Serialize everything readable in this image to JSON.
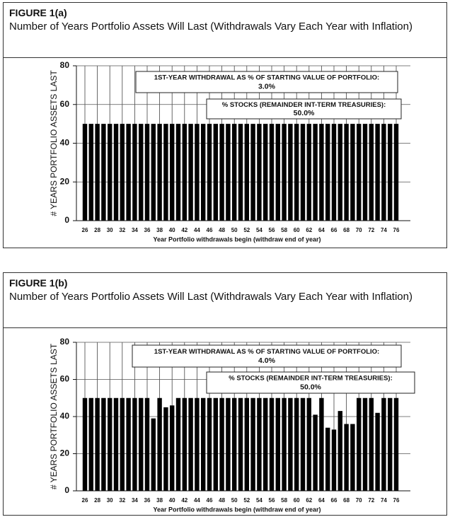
{
  "chart_data": [
    {
      "type": "bar",
      "title": "FIGURE 1(a)",
      "subtitle": "Number of Years Portfolio Assets Will Last (Withdrawals Vary Each Year with Inflation)",
      "annotations": [
        "1ST-YEAR WITHDRAWAL AS % OF STARTING VALUE OF PORTFOLIO:",
        "3.0%",
        "% STOCKS (REMAINDER INT-TERM TREASURIES):",
        "50.0%"
      ],
      "ylabel": "# YEARS PORTFOLIO ASSETS LAST",
      "xlabel": "Year Portfolio withdrawals begin (withdraw end of year)",
      "categories": [
        "26",
        null,
        "28",
        null,
        "30",
        null,
        "32",
        null,
        "34",
        null,
        "36",
        null,
        "38",
        null,
        "40",
        null,
        "42",
        null,
        "44",
        null,
        "46",
        null,
        "48",
        null,
        "50",
        null,
        "52",
        null,
        "54",
        null,
        "56",
        null,
        "58",
        null,
        "60",
        null,
        "62",
        null,
        "64",
        null,
        "66",
        null,
        "68",
        null,
        "70",
        null,
        "72",
        null,
        "74",
        null,
        "76"
      ],
      "values": [
        50,
        50,
        50,
        50,
        50,
        50,
        50,
        50,
        50,
        50,
        50,
        50,
        50,
        50,
        50,
        50,
        50,
        50,
        50,
        50,
        50,
        50,
        50,
        50,
        50,
        50,
        50,
        50,
        50,
        50,
        50,
        50,
        50,
        50,
        50,
        50,
        50,
        50,
        50,
        50,
        50,
        50,
        50,
        50,
        50,
        50,
        50,
        50,
        50,
        50,
        50
      ],
      "color": "#000000",
      "ylim": [
        0,
        80
      ],
      "yticks": [
        0,
        20,
        40,
        60,
        80
      ],
      "grid": true
    },
    {
      "type": "bar",
      "title": "FIGURE 1(b)",
      "subtitle": "Number of Years Portfolio Assets Will Last (Withdrawals Vary Each Year with Inflation)",
      "annotations": [
        "1ST-YEAR WITHDRAWAL AS % OF STARTING VALUE OF PORTFOLIO:",
        "4.0%",
        "% STOCKS (REMAINDER INT-TERM TREASURIES):",
        "50.0%"
      ],
      "ylabel": "# YEARS PORTFOLIO ASSETS LAST",
      "xlabel": "Year Portfolio withdrawals begin (withdraw end of year)",
      "categories": [
        "26",
        null,
        "28",
        null,
        "30",
        null,
        "32",
        null,
        "34",
        null,
        "36",
        null,
        "38",
        null,
        "40",
        null,
        "42",
        null,
        "44",
        null,
        "46",
        null,
        "48",
        null,
        "50",
        null,
        "52",
        null,
        "54",
        null,
        "56",
        null,
        "58",
        null,
        "60",
        null,
        "62",
        null,
        "64",
        null,
        "66",
        null,
        "68",
        null,
        "70",
        null,
        "72",
        null,
        "74",
        null,
        "76"
      ],
      "values": [
        50,
        50,
        50,
        50,
        50,
        50,
        50,
        50,
        50,
        50,
        50,
        39,
        50,
        45,
        46,
        50,
        50,
        50,
        50,
        50,
        50,
        50,
        50,
        50,
        50,
        50,
        50,
        50,
        50,
        50,
        50,
        50,
        50,
        50,
        50,
        50,
        50,
        41,
        50,
        34,
        33,
        43,
        36,
        36,
        50,
        50,
        50,
        42,
        50,
        50,
        50
      ],
      "color": "#000000",
      "ylim": [
        0,
        80
      ],
      "yticks": [
        0,
        20,
        40,
        60,
        80
      ],
      "grid": true
    }
  ]
}
